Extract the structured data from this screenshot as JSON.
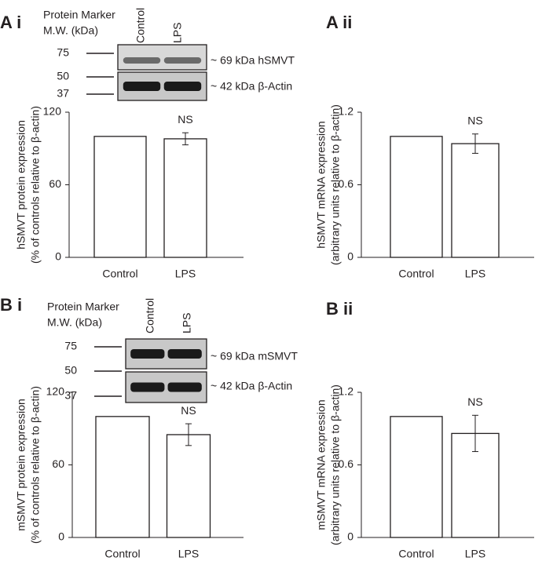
{
  "chart_data": [
    {
      "type": "bar",
      "panel": "A i",
      "ylabel": [
        "hSMVT protein expression",
        "(% of controls relative to  β-actin)"
      ],
      "categories": [
        "Control",
        "LPS"
      ],
      "values": [
        100,
        98
      ],
      "errors": [
        null,
        5
      ],
      "annotation": "NS",
      "ylim": [
        0,
        120
      ],
      "yticks": [
        0,
        60,
        120
      ],
      "color": "#ffffff",
      "blot": {
        "marker_title": [
          "Protein Marker",
          "M.W. (kDa)"
        ],
        "lanes": [
          "Control",
          "LPS"
        ],
        "markers": [
          75,
          50,
          37
        ],
        "bands": [
          "~ 69 kDa hSMVT",
          "~ 42 kDa β-Actin"
        ]
      }
    },
    {
      "type": "bar",
      "panel": "A ii",
      "ylabel": [
        "hSMVT mRNA expression",
        "(arbitrary units relative to β-actin)"
      ],
      "categories": [
        "Control",
        "LPS"
      ],
      "values": [
        1.0,
        0.94
      ],
      "errors": [
        null,
        0.08
      ],
      "annotation": "NS",
      "ylim": [
        0,
        1.2
      ],
      "yticks": [
        0,
        0.6,
        1.2
      ],
      "color": "#ffffff"
    },
    {
      "type": "bar",
      "panel": "B i",
      "ylabel": [
        "mSMVT protein expression",
        "(% of controls relative to  β-actin)"
      ],
      "categories": [
        "Control",
        "LPS"
      ],
      "values": [
        100,
        85
      ],
      "errors": [
        null,
        9
      ],
      "annotation": "NS",
      "ylim": [
        0,
        120
      ],
      "yticks": [
        0,
        60,
        120
      ],
      "color": "#ffffff",
      "blot": {
        "marker_title": [
          "Protein Marker",
          "M.W. (kDa)"
        ],
        "lanes": [
          "Control",
          "LPS"
        ],
        "markers": [
          75,
          50,
          37
        ],
        "bands": [
          "~ 69 kDa mSMVT",
          "~ 42 kDa β-Actin"
        ]
      }
    },
    {
      "type": "bar",
      "panel": "B ii",
      "ylabel": [
        "mSMVT mRNA expression",
        "(arbitrary units relative to β-actin)"
      ],
      "categories": [
        "Control",
        "LPS"
      ],
      "values": [
        1.0,
        0.86
      ],
      "errors": [
        null,
        0.15
      ],
      "annotation": "NS",
      "ylim": [
        0,
        1.2
      ],
      "yticks": [
        0,
        0.6,
        1.2
      ],
      "color": "#ffffff"
    }
  ]
}
